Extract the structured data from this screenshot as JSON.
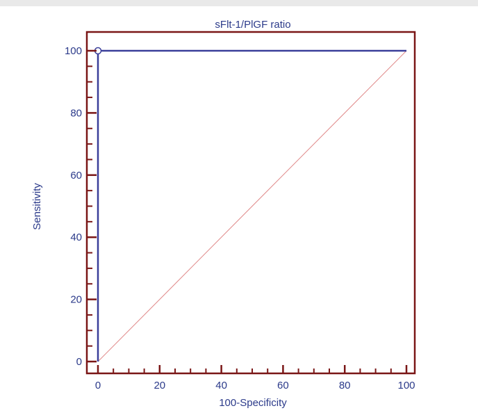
{
  "chart_data": {
    "type": "line",
    "title": "sFlt-1/PlGF ratio",
    "xlabel": "100-Specificity",
    "ylabel": "Sensitivity",
    "xlim": [
      0,
      100
    ],
    "ylim": [
      0,
      100
    ],
    "x_ticks": [
      0,
      20,
      40,
      60,
      80,
      100
    ],
    "y_ticks": [
      0,
      20,
      40,
      60,
      80,
      100
    ],
    "x_ticks_text": [
      "0",
      "20",
      "40",
      "60",
      "80",
      "100"
    ],
    "y_ticks_text": [
      "0",
      "20",
      "40",
      "60",
      "80",
      "100"
    ],
    "series": [
      {
        "x": [
          0,
          0,
          100
        ],
        "y": [
          0,
          100,
          100
        ]
      }
    ],
    "reference_line": {
      "x": [
        0,
        100
      ],
      "y": [
        0,
        100
      ]
    },
    "highlight_point": {
      "x": 0,
      "y": 100
    },
    "grid": false,
    "colors": {
      "frame": "#7a1616",
      "curve": "#3a3f9a",
      "diagonal": "#e08a8a",
      "text": "#2b3a8a",
      "point_fill": "#ffffff"
    }
  }
}
